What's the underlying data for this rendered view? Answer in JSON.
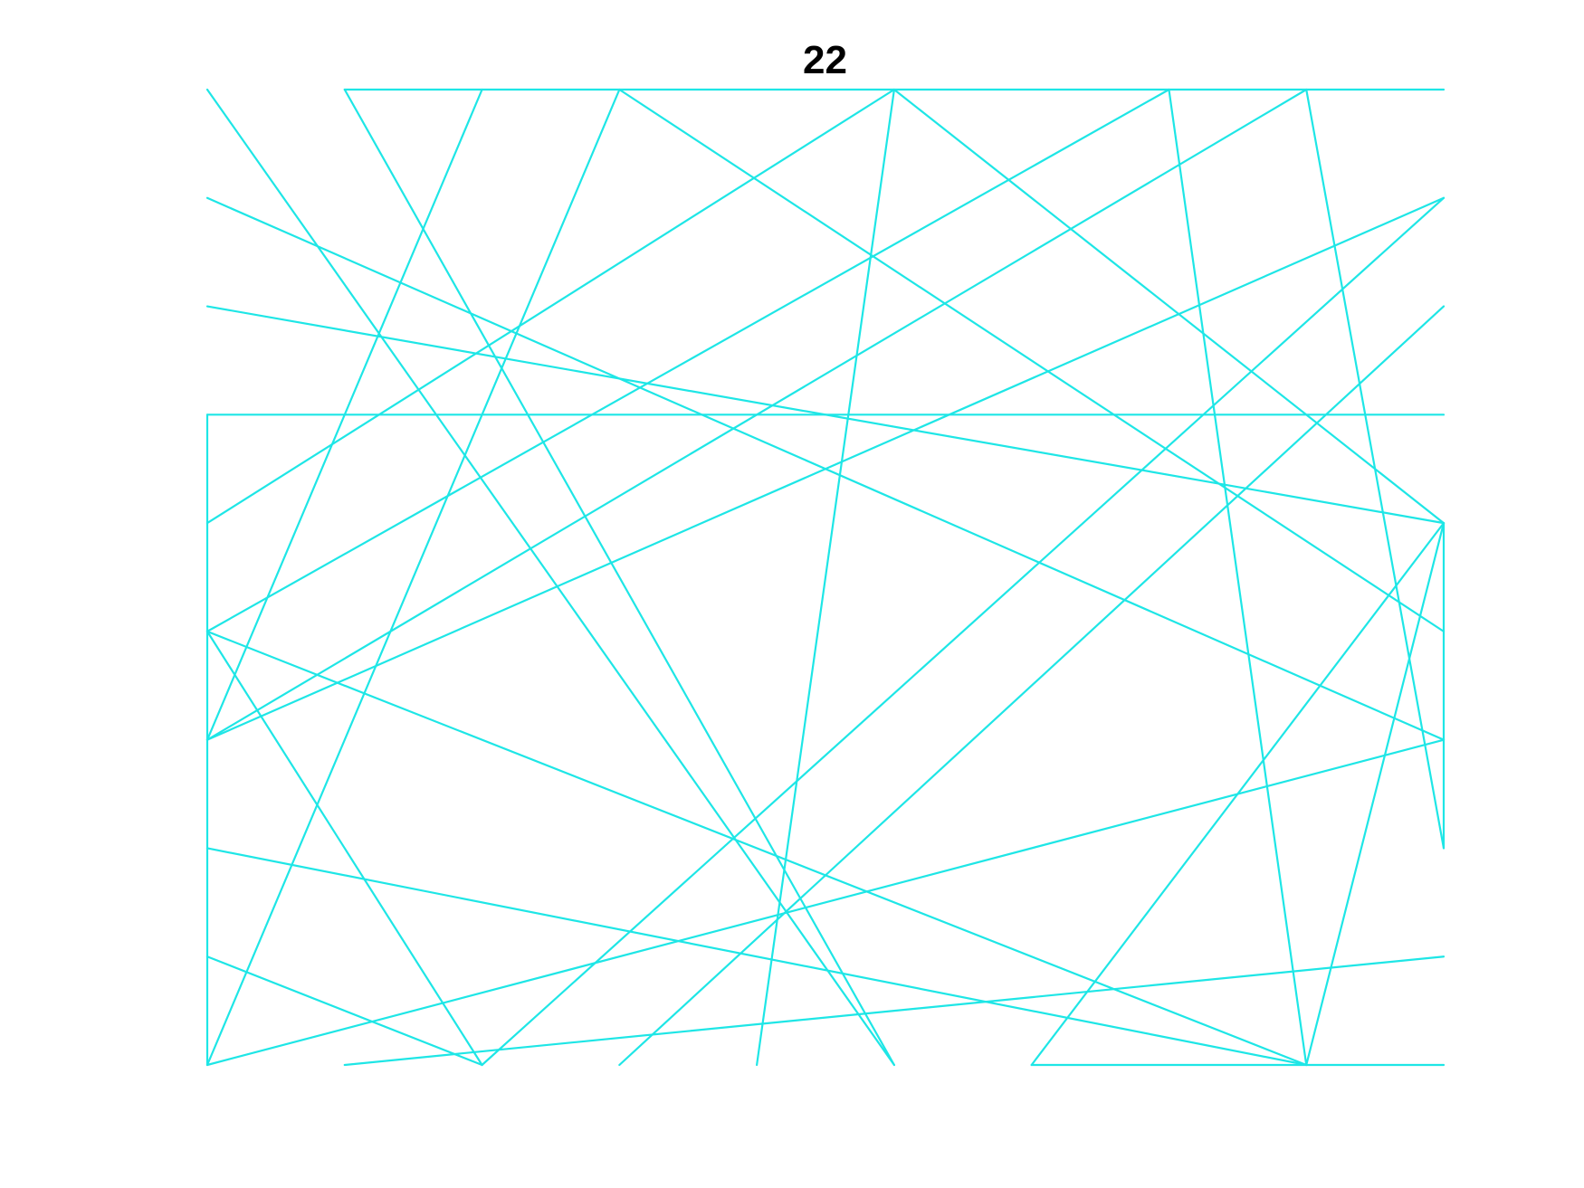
{
  "title": "22",
  "colors": {
    "line": "#1ee6e6",
    "background": "#ffffff",
    "title": "#000000"
  },
  "chart_data": {
    "type": "line",
    "title": "22",
    "xlabel": "",
    "ylabel": "",
    "axes_visible": false,
    "grid": false,
    "xlim": [
      0,
      9
    ],
    "ylim": [
      0,
      9
    ],
    "segments": [
      [
        [
          0,
          9
        ],
        [
          5,
          0
        ]
      ],
      [
        [
          0,
          8
        ],
        [
          9,
          3
        ]
      ],
      [
        [
          0,
          7
        ],
        [
          9,
          5
        ]
      ],
      [
        [
          0,
          6
        ],
        [
          9,
          6
        ]
      ],
      [
        [
          0,
          6
        ],
        [
          0,
          0
        ]
      ],
      [
        [
          0,
          5
        ],
        [
          5,
          9
        ]
      ],
      [
        [
          0,
          4
        ],
        [
          7,
          9
        ]
      ],
      [
        [
          0,
          4
        ],
        [
          2,
          0
        ]
      ],
      [
        [
          0,
          4
        ],
        [
          8,
          0
        ]
      ],
      [
        [
          0,
          3
        ],
        [
          2,
          9
        ]
      ],
      [
        [
          0,
          3
        ],
        [
          9,
          8
        ]
      ],
      [
        [
          0,
          3
        ],
        [
          8,
          9
        ]
      ],
      [
        [
          0,
          2
        ],
        [
          8,
          0
        ]
      ],
      [
        [
          0,
          1
        ],
        [
          2,
          0
        ]
      ],
      [
        [
          0,
          0
        ],
        [
          3,
          9
        ]
      ],
      [
        [
          0,
          0
        ],
        [
          9,
          3
        ]
      ],
      [
        [
          1,
          9
        ],
        [
          9,
          9
        ]
      ],
      [
        [
          1,
          9
        ],
        [
          5,
          0
        ]
      ],
      [
        [
          1,
          0
        ],
        [
          9,
          1
        ]
      ],
      [
        [
          2,
          0
        ],
        [
          9,
          8
        ]
      ],
      [
        [
          3,
          9
        ],
        [
          9,
          4
        ]
      ],
      [
        [
          3,
          0
        ],
        [
          9,
          7
        ]
      ],
      [
        [
          4,
          0
        ],
        [
          5,
          9
        ]
      ],
      [
        [
          5,
          9
        ],
        [
          9,
          5
        ]
      ],
      [
        [
          6,
          0
        ],
        [
          9,
          5
        ]
      ],
      [
        [
          6,
          0
        ],
        [
          9,
          0
        ]
      ],
      [
        [
          7,
          9
        ],
        [
          8,
          0
        ]
      ],
      [
        [
          8,
          9
        ],
        [
          9,
          2
        ]
      ],
      [
        [
          8,
          0
        ],
        [
          9,
          5
        ]
      ],
      [
        [
          9,
          5
        ],
        [
          9,
          2
        ]
      ]
    ]
  }
}
